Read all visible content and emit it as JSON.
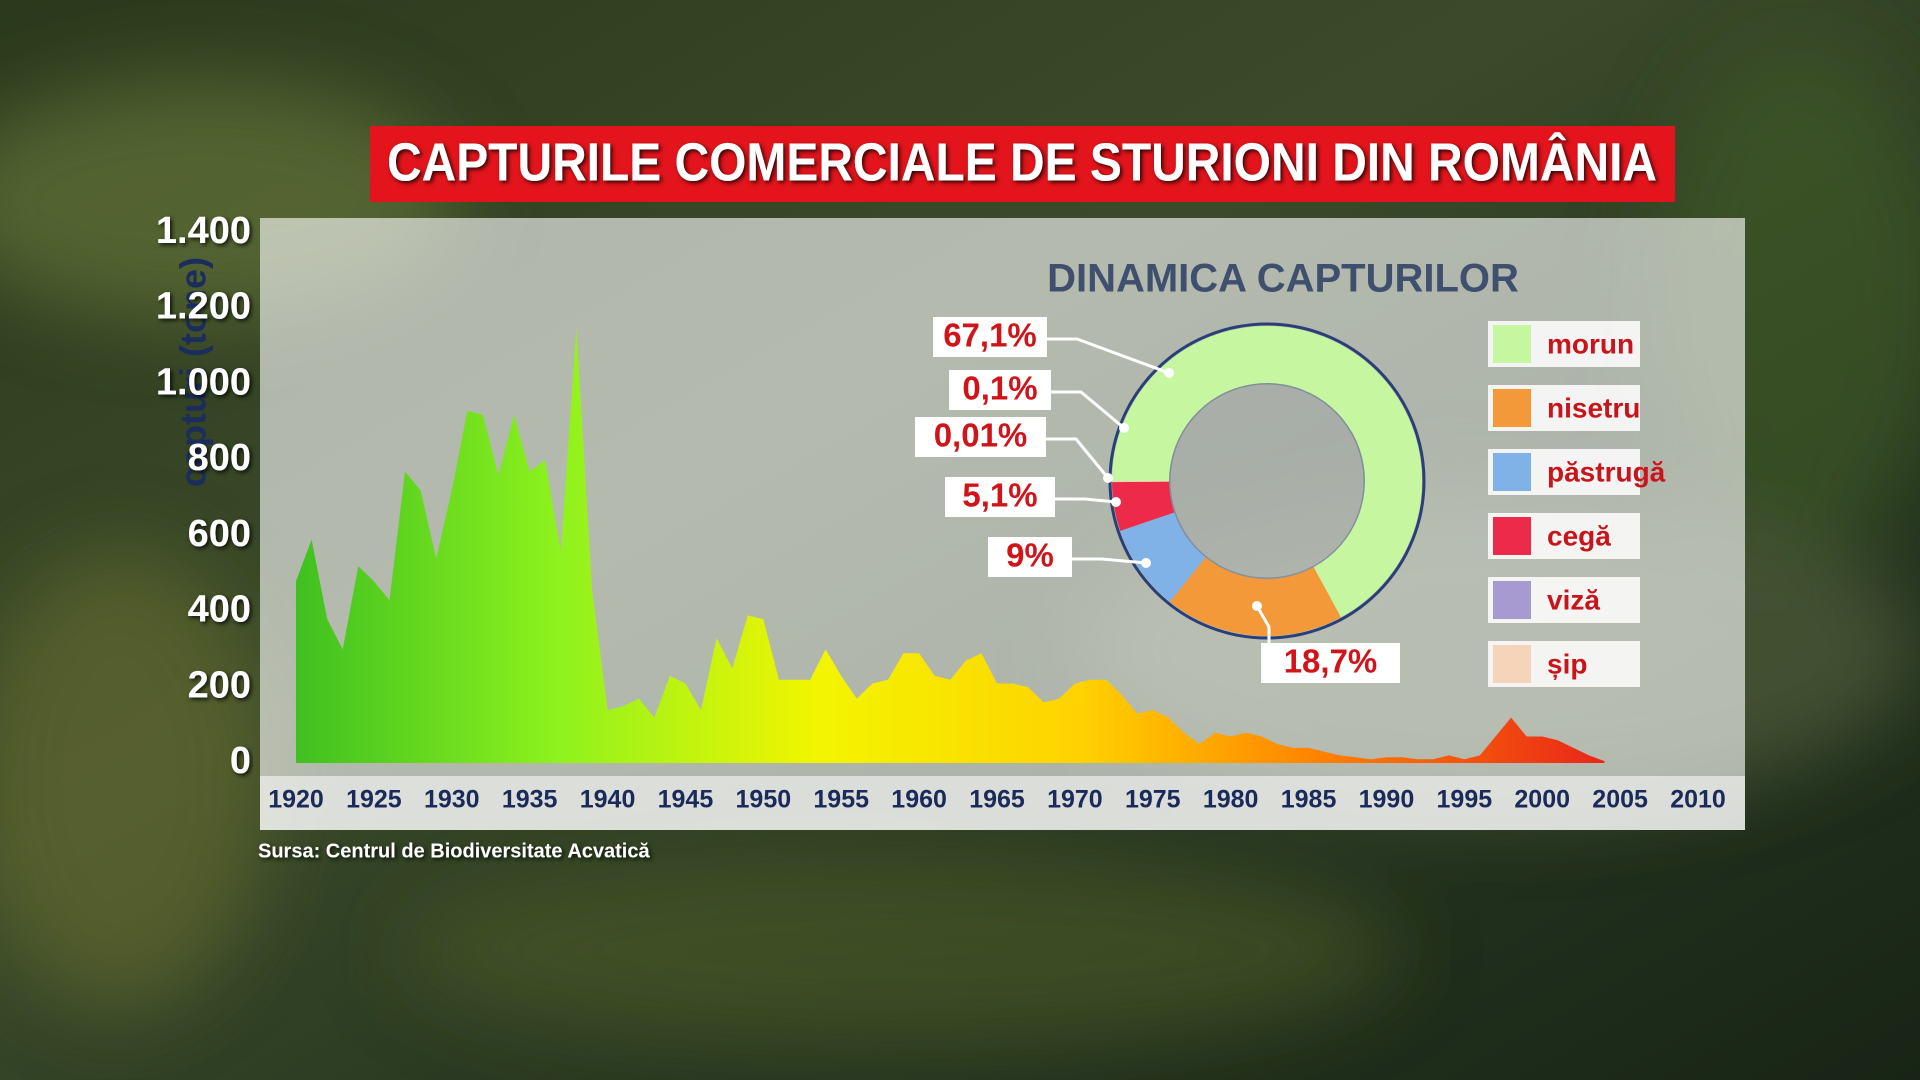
{
  "title": "CAPTURILE COMERCIALE DE STURIONI DIN ROMÂNIA",
  "source": "Sursa: Centrul de Biodiversitate Acvatică",
  "chart_data": [
    {
      "type": "area",
      "ylabel": "capturi (tone)",
      "x": [
        1920,
        1921,
        1922,
        1923,
        1924,
        1925,
        1926,
        1927,
        1928,
        1929,
        1930,
        1931,
        1932,
        1933,
        1934,
        1935,
        1936,
        1937,
        1938,
        1939,
        1940,
        1941,
        1942,
        1943,
        1944,
        1945,
        1946,
        1947,
        1948,
        1949,
        1950,
        1951,
        1952,
        1953,
        1954,
        1955,
        1956,
        1957,
        1958,
        1959,
        1960,
        1961,
        1962,
        1963,
        1964,
        1965,
        1966,
        1967,
        1968,
        1969,
        1970,
        1971,
        1972,
        1973,
        1974,
        1975,
        1976,
        1977,
        1978,
        1979,
        1980,
        1981,
        1982,
        1983,
        1984,
        1985,
        1986,
        1987,
        1988,
        1989,
        1990,
        1991,
        1992,
        1993,
        1994,
        1995,
        1996,
        1997,
        1998,
        1999,
        2000,
        2001,
        2002,
        2003,
        2004
      ],
      "values": [
        480,
        590,
        380,
        300,
        520,
        480,
        430,
        770,
        720,
        540,
        720,
        930,
        920,
        760,
        920,
        770,
        800,
        560,
        1150,
        460,
        140,
        150,
        170,
        120,
        230,
        210,
        140,
        330,
        250,
        390,
        380,
        220,
        220,
        220,
        300,
        230,
        170,
        210,
        220,
        290,
        290,
        230,
        220,
        270,
        290,
        210,
        210,
        200,
        160,
        170,
        210,
        220,
        220,
        180,
        130,
        140,
        120,
        80,
        50,
        80,
        70,
        80,
        70,
        50,
        40,
        40,
        30,
        20,
        15,
        10,
        15,
        15,
        10,
        10,
        20,
        10,
        20,
        70,
        120,
        70,
        70,
        60,
        40,
        20,
        5
      ],
      "gradient": [
        "#3fc020",
        "#8ef21e",
        "#f3f500",
        "#ffd200",
        "#ff7a00",
        "#e8261a"
      ],
      "xlim": [
        1920,
        2010
      ],
      "xticks": [
        1920,
        1925,
        1930,
        1935,
        1940,
        1945,
        1950,
        1955,
        1960,
        1965,
        1970,
        1975,
        1980,
        1985,
        1990,
        1995,
        2000,
        2005,
        2010
      ],
      "ylim": [
        0,
        1400
      ],
      "yticks": [
        0,
        200,
        400,
        600,
        800,
        {
          "value": 1000,
          "label": "1.000"
        },
        {
          "value": 1200,
          "label": "1.200"
        },
        {
          "value": 1400,
          "label": "1.400"
        }
      ]
    },
    {
      "type": "donut",
      "title": "DINAMICA CAPTURILOR",
      "categories": [
        "morun",
        "nisetru",
        "păstrugă",
        "cegă",
        "viză",
        "șip"
      ],
      "values": [
        67.1,
        18.7,
        9,
        5.1,
        0.01,
        0.1
      ],
      "value_labels": [
        "67,1%",
        "18,7%",
        "9%",
        "5,1%",
        "0,01%",
        "0,1%"
      ],
      "colors": [
        "#c6f7a0",
        "#f4993a",
        "#80b1e7",
        "#ee2a4a",
        "#a79ad0",
        "#f6d4b9"
      ]
    }
  ]
}
